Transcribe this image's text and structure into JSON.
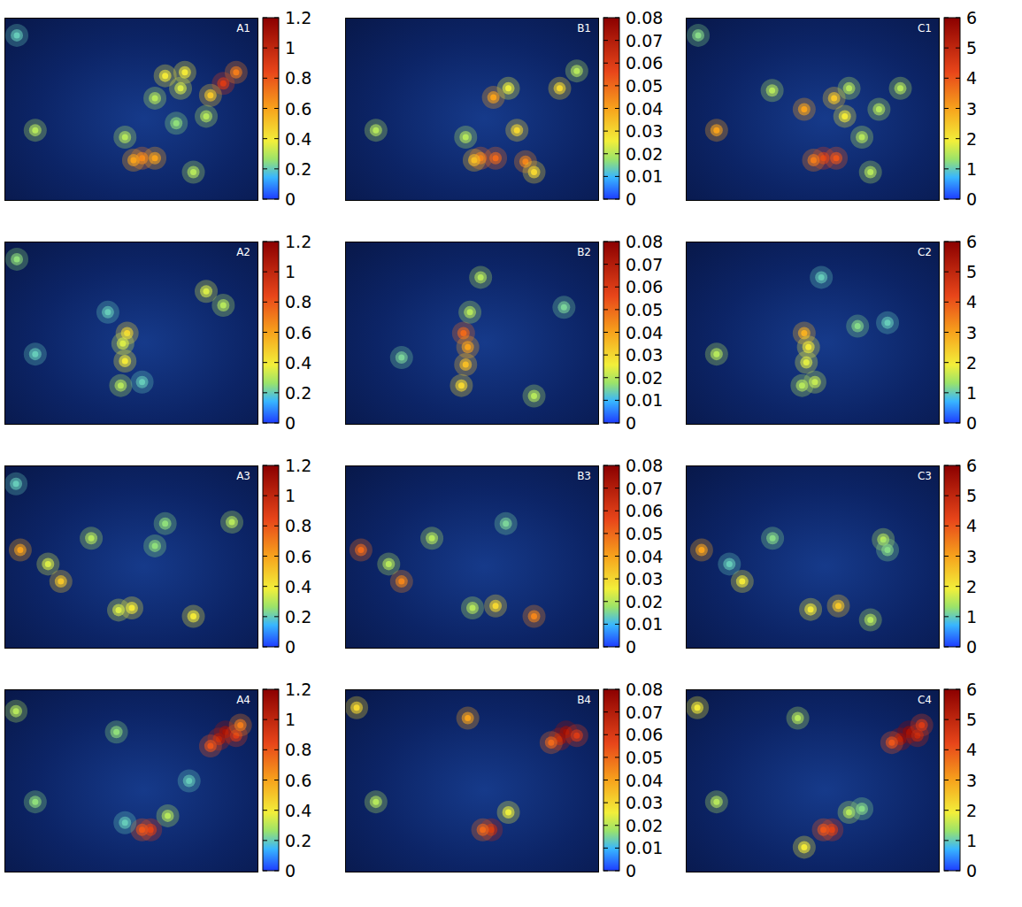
{
  "chart_data": [
    {
      "type": "heatmap",
      "title": "A1",
      "xlim": [
        -125,
        -66
      ],
      "ylim": [
        24,
        50
      ],
      "tick_labels": false,
      "points": [
        {
          "x": -74,
          "y": 40.7,
          "value": 0.9
        },
        {
          "x": -71,
          "y": 42.3,
          "value": 0.7
        },
        {
          "x": -77,
          "y": 39,
          "value": 0.5
        },
        {
          "x": -83,
          "y": 42.3,
          "value": 0.4
        },
        {
          "x": -84,
          "y": 40,
          "value": 0.35
        },
        {
          "x": -87.6,
          "y": 41.8,
          "value": 0.4
        },
        {
          "x": -90,
          "y": 38.6,
          "value": 0.3
        },
        {
          "x": -93,
          "y": 30,
          "value": 0.7
        },
        {
          "x": -90,
          "y": 30,
          "value": 0.6
        },
        {
          "x": -95,
          "y": 29.7,
          "value": 0.6
        },
        {
          "x": -81,
          "y": 28,
          "value": 0.3
        },
        {
          "x": -85,
          "y": 35,
          "value": 0.25
        },
        {
          "x": -78,
          "y": 36,
          "value": 0.3
        },
        {
          "x": -118,
          "y": 34,
          "value": 0.3
        },
        {
          "x": -97,
          "y": 33,
          "value": 0.3
        },
        {
          "x": -122.3,
          "y": 47.6,
          "value": 0.2
        }
      ],
      "colorbar": {
        "range": [
          0,
          1.2
        ],
        "ticks": [
          0,
          0.2,
          0.4,
          0.6,
          0.8,
          1,
          1.2
        ]
      }
    },
    {
      "type": "heatmap",
      "title": "B1",
      "xlim": [
        -125,
        -66
      ],
      "ylim": [
        24,
        50
      ],
      "tick_labels": false,
      "points": [
        {
          "x": -90.5,
          "y": 38.7,
          "value": 0.04
        },
        {
          "x": -93.5,
          "y": 30,
          "value": 0.05
        },
        {
          "x": -90,
          "y": 30,
          "value": 0.05
        },
        {
          "x": -83,
          "y": 29.5,
          "value": 0.045
        },
        {
          "x": -81,
          "y": 28,
          "value": 0.03
        },
        {
          "x": -85,
          "y": 34,
          "value": 0.03
        },
        {
          "x": -87,
          "y": 40,
          "value": 0.025
        },
        {
          "x": -75,
          "y": 40,
          "value": 0.03
        },
        {
          "x": -118,
          "y": 34,
          "value": 0.02
        },
        {
          "x": -97,
          "y": 33,
          "value": 0.02
        },
        {
          "x": -95,
          "y": 29.7,
          "value": 0.035
        },
        {
          "x": -71,
          "y": 42.5,
          "value": 0.02
        }
      ],
      "colorbar": {
        "range": [
          0,
          0.08
        ],
        "ticks": [
          0,
          0.01,
          0.02,
          0.03,
          0.04,
          0.05,
          0.06,
          0.07,
          0.08
        ]
      }
    },
    {
      "type": "heatmap",
      "title": "C1",
      "xlim": [
        -125,
        -66
      ],
      "ylim": [
        24,
        50
      ],
      "tick_labels": false,
      "points": [
        {
          "x": -93,
          "y": 30,
          "value": 4.5
        },
        {
          "x": -90,
          "y": 30,
          "value": 4
        },
        {
          "x": -95.3,
          "y": 29.7,
          "value": 3.5
        },
        {
          "x": -97.5,
          "y": 37,
          "value": 3
        },
        {
          "x": -90.5,
          "y": 38.6,
          "value": 2.5
        },
        {
          "x": -88,
          "y": 36,
          "value": 2
        },
        {
          "x": -84,
          "y": 33,
          "value": 1.5
        },
        {
          "x": -82,
          "y": 28,
          "value": 1.5
        },
        {
          "x": -118,
          "y": 34,
          "value": 3
        },
        {
          "x": -87,
          "y": 40,
          "value": 1.5
        },
        {
          "x": -75,
          "y": 40,
          "value": 1.5
        },
        {
          "x": -80,
          "y": 37,
          "value": 1.5
        },
        {
          "x": -105,
          "y": 39.7,
          "value": 1.5
        },
        {
          "x": -122.3,
          "y": 47.6,
          "value": 1.2
        }
      ],
      "colorbar": {
        "range": [
          0,
          6
        ],
        "ticks": [
          0,
          1,
          2,
          3,
          4,
          5,
          6
        ]
      }
    },
    {
      "type": "heatmap",
      "title": "A2",
      "xlim": [
        -125,
        -66
      ],
      "ylim": [
        24,
        50
      ],
      "tick_labels": false,
      "points": [
        {
          "x": -97,
          "y": 33,
          "value": 0.4
        },
        {
          "x": -96.5,
          "y": 37,
          "value": 0.45
        },
        {
          "x": -97.5,
          "y": 35.5,
          "value": 0.35
        },
        {
          "x": -98,
          "y": 29.5,
          "value": 0.3
        },
        {
          "x": -74,
          "y": 41,
          "value": 0.3
        },
        {
          "x": -78,
          "y": 43,
          "value": 0.35
        },
        {
          "x": -118,
          "y": 34,
          "value": 0.2
        },
        {
          "x": -122.3,
          "y": 47.6,
          "value": 0.25
        },
        {
          "x": -101,
          "y": 40,
          "value": 0.2
        },
        {
          "x": -93,
          "y": 30,
          "value": 0.2
        }
      ],
      "colorbar": {
        "range": [
          0,
          1.2
        ],
        "ticks": [
          0,
          0.2,
          0.4,
          0.6,
          0.8,
          1,
          1.2
        ]
      }
    },
    {
      "type": "heatmap",
      "title": "B2",
      "xlim": [
        -125,
        -66
      ],
      "ylim": [
        24,
        50
      ],
      "tick_labels": false,
      "points": [
        {
          "x": -97.5,
          "y": 37,
          "value": 0.05
        },
        {
          "x": -96.5,
          "y": 35,
          "value": 0.04
        },
        {
          "x": -97,
          "y": 32.5,
          "value": 0.035
        },
        {
          "x": -98,
          "y": 29.5,
          "value": 0.03
        },
        {
          "x": -96,
          "y": 40,
          "value": 0.02
        },
        {
          "x": -93.5,
          "y": 45,
          "value": 0.02
        },
        {
          "x": -112,
          "y": 33.5,
          "value": 0.015
        },
        {
          "x": -81,
          "y": 28,
          "value": 0.02
        },
        {
          "x": -74,
          "y": 40.7,
          "value": 0.015
        }
      ],
      "colorbar": {
        "range": [
          0,
          0.08
        ],
        "ticks": [
          0,
          0.01,
          0.02,
          0.03,
          0.04,
          0.05,
          0.06,
          0.07,
          0.08
        ]
      }
    },
    {
      "type": "heatmap",
      "title": "C2",
      "xlim": [
        -125,
        -66
      ],
      "ylim": [
        24,
        50
      ],
      "tick_labels": false,
      "points": [
        {
          "x": -97.5,
          "y": 37,
          "value": 2.8
        },
        {
          "x": -96.5,
          "y": 35,
          "value": 2
        },
        {
          "x": -97,
          "y": 32.8,
          "value": 1.8
        },
        {
          "x": -95,
          "y": 30,
          "value": 1.6
        },
        {
          "x": -98,
          "y": 29.5,
          "value": 1.5
        },
        {
          "x": -118,
          "y": 34,
          "value": 1.5
        },
        {
          "x": -85,
          "y": 38,
          "value": 1.2
        },
        {
          "x": -78,
          "y": 38.5,
          "value": 1
        },
        {
          "x": -93.5,
          "y": 45,
          "value": 1
        }
      ],
      "colorbar": {
        "range": [
          0,
          6
        ],
        "ticks": [
          0,
          1,
          2,
          3,
          4,
          5,
          6
        ]
      }
    },
    {
      "type": "heatmap",
      "title": "A3",
      "xlim": [
        -125,
        -66
      ],
      "ylim": [
        24,
        50
      ],
      "tick_labels": false,
      "points": [
        {
          "x": -121.5,
          "y": 38,
          "value": 0.6
        },
        {
          "x": -112,
          "y": 33.5,
          "value": 0.5
        },
        {
          "x": -115,
          "y": 36,
          "value": 0.35
        },
        {
          "x": -104.9,
          "y": 39.7,
          "value": 0.3
        },
        {
          "x": -81,
          "y": 28.5,
          "value": 0.4
        },
        {
          "x": -95.4,
          "y": 29.7,
          "value": 0.4
        },
        {
          "x": -98.5,
          "y": 29.4,
          "value": 0.35
        },
        {
          "x": -90,
          "y": 38.6,
          "value": 0.25
        },
        {
          "x": -72,
          "y": 42,
          "value": 0.3
        },
        {
          "x": -87.6,
          "y": 41.8,
          "value": 0.25
        },
        {
          "x": -122.5,
          "y": 47.5,
          "value": 0.2
        }
      ],
      "colorbar": {
        "range": [
          0,
          1.2
        ],
        "ticks": [
          0,
          0.2,
          0.4,
          0.6,
          0.8,
          1,
          1.2
        ]
      }
    },
    {
      "type": "heatmap",
      "title": "B3",
      "xlim": [
        -125,
        -66
      ],
      "ylim": [
        24,
        50
      ],
      "tick_labels": false,
      "points": [
        {
          "x": -121.5,
          "y": 38,
          "value": 0.05
        },
        {
          "x": -112,
          "y": 33.5,
          "value": 0.045
        },
        {
          "x": -81,
          "y": 28.5,
          "value": 0.045
        },
        {
          "x": -90,
          "y": 30,
          "value": 0.03
        },
        {
          "x": -104.9,
          "y": 39.7,
          "value": 0.02
        },
        {
          "x": -115,
          "y": 36,
          "value": 0.02
        },
        {
          "x": -87.6,
          "y": 41.8,
          "value": 0.015
        },
        {
          "x": -95.4,
          "y": 29.7,
          "value": 0.02
        }
      ],
      "colorbar": {
        "range": [
          0,
          0.08
        ],
        "ticks": [
          0,
          0.01,
          0.02,
          0.03,
          0.04,
          0.05,
          0.06,
          0.07,
          0.08
        ]
      }
    },
    {
      "type": "heatmap",
      "title": "C3",
      "xlim": [
        -125,
        -66
      ],
      "ylim": [
        24,
        50
      ],
      "tick_labels": false,
      "points": [
        {
          "x": -121.5,
          "y": 38,
          "value": 3
        },
        {
          "x": -112,
          "y": 33.5,
          "value": 2
        },
        {
          "x": -89.5,
          "y": 30,
          "value": 2.5
        },
        {
          "x": -96,
          "y": 29.5,
          "value": 2
        },
        {
          "x": -82,
          "y": 28,
          "value": 1.5
        },
        {
          "x": -79,
          "y": 39.5,
          "value": 1.5
        },
        {
          "x": -78,
          "y": 38,
          "value": 1.2
        },
        {
          "x": -104.9,
          "y": 39.7,
          "value": 1.2
        },
        {
          "x": -115,
          "y": 36,
          "value": 1
        }
      ],
      "colorbar": {
        "range": [
          0,
          6
        ],
        "ticks": [
          0,
          1,
          2,
          3,
          4,
          5,
          6
        ]
      }
    },
    {
      "type": "heatmap",
      "title": "A4",
      "xlim": [
        -125,
        -66
      ],
      "ylim": [
        24,
        50
      ],
      "tick_labels": false,
      "points": [
        {
          "x": -75,
          "y": 43,
          "value": 1
        },
        {
          "x": -73.5,
          "y": 44,
          "value": 1.1
        },
        {
          "x": -71,
          "y": 43.5,
          "value": 0.9
        },
        {
          "x": -77,
          "y": 42,
          "value": 0.8
        },
        {
          "x": -70,
          "y": 45,
          "value": 0.7
        },
        {
          "x": -91,
          "y": 30,
          "value": 0.9
        },
        {
          "x": -93,
          "y": 30,
          "value": 0.8
        },
        {
          "x": -87,
          "y": 32,
          "value": 0.3
        },
        {
          "x": -82,
          "y": 37,
          "value": 0.2
        },
        {
          "x": -122.5,
          "y": 47,
          "value": 0.3
        },
        {
          "x": -118,
          "y": 34,
          "value": 0.25
        },
        {
          "x": -97,
          "y": 31,
          "value": 0.2
        },
        {
          "x": -99,
          "y": 44,
          "value": 0.25
        }
      ],
      "colorbar": {
        "range": [
          0,
          1.2
        ],
        "ticks": [
          0,
          0.2,
          0.4,
          0.6,
          0.8,
          1,
          1.2
        ]
      }
    },
    {
      "type": "heatmap",
      "title": "B4",
      "xlim": [
        -125,
        -66
      ],
      "ylim": [
        24,
        50
      ],
      "tick_labels": false,
      "points": [
        {
          "x": -75,
          "y": 43,
          "value": 0.07
        },
        {
          "x": -73.5,
          "y": 44,
          "value": 0.075
        },
        {
          "x": -71,
          "y": 43.5,
          "value": 0.06
        },
        {
          "x": -77,
          "y": 42.5,
          "value": 0.05
        },
        {
          "x": -91,
          "y": 30,
          "value": 0.065
        },
        {
          "x": -93,
          "y": 30,
          "value": 0.05
        },
        {
          "x": -87,
          "y": 32.5,
          "value": 0.025
        },
        {
          "x": -96.5,
          "y": 46,
          "value": 0.04
        },
        {
          "x": -122.5,
          "y": 47.5,
          "value": 0.03
        },
        {
          "x": -118,
          "y": 34,
          "value": 0.02
        }
      ],
      "colorbar": {
        "range": [
          0,
          0.08
        ],
        "ticks": [
          0,
          0.01,
          0.02,
          0.03,
          0.04,
          0.05,
          0.06,
          0.07,
          0.08
        ]
      }
    },
    {
      "type": "heatmap",
      "title": "C4",
      "xlim": [
        -125,
        -66
      ],
      "ylim": [
        24,
        50
      ],
      "tick_labels": false,
      "points": [
        {
          "x": -75,
          "y": 43,
          "value": 5.5
        },
        {
          "x": -73,
          "y": 44,
          "value": 5.8
        },
        {
          "x": -71,
          "y": 43.5,
          "value": 5
        },
        {
          "x": -77,
          "y": 42.5,
          "value": 4
        },
        {
          "x": -70,
          "y": 45,
          "value": 4.5
        },
        {
          "x": -91,
          "y": 30,
          "value": 4.5
        },
        {
          "x": -93,
          "y": 30,
          "value": 4
        },
        {
          "x": -87,
          "y": 32.5,
          "value": 1.5
        },
        {
          "x": -84,
          "y": 33,
          "value": 1.2
        },
        {
          "x": -99,
          "y": 46,
          "value": 1.5
        },
        {
          "x": -122.5,
          "y": 47.5,
          "value": 2
        },
        {
          "x": -118,
          "y": 34,
          "value": 1.5
        },
        {
          "x": -97.5,
          "y": 27.5,
          "value": 2
        }
      ],
      "colorbar": {
        "range": [
          0,
          6
        ],
        "ticks": [
          0,
          1,
          2,
          3,
          4,
          5,
          6
        ]
      }
    }
  ]
}
